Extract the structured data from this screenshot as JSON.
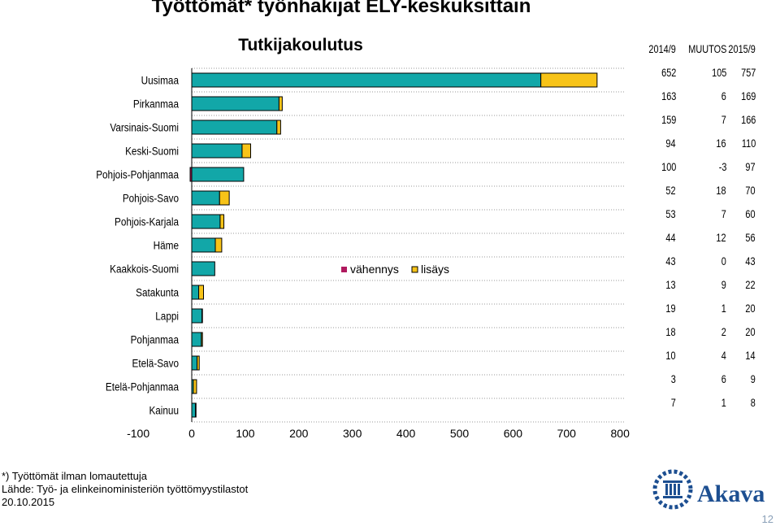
{
  "page": {
    "title": "Työttömät* työnhakijat ELY-keskuksittain",
    "footnote_line1": "*) Työttömät ilman lomautettuja",
    "footnote_line2": "Lähde: Työ- ja elinkeinoministeriön työttömyystilastot",
    "footnote_line3": "20.10.2015",
    "logo_text": "Akava",
    "page_number": "12"
  },
  "table": {
    "headers": [
      "2014/9",
      "MUUTOS",
      "2015/9"
    ],
    "rows": [
      [
        "652",
        "105",
        "757"
      ],
      [
        "163",
        "6",
        "169"
      ],
      [
        "159",
        "7",
        "166"
      ],
      [
        "94",
        "16",
        "110"
      ],
      [
        "100",
        "-3",
        "97"
      ],
      [
        "52",
        "18",
        "70"
      ],
      [
        "53",
        "7",
        "60"
      ],
      [
        "44",
        "12",
        "56"
      ],
      [
        "43",
        "0",
        "43"
      ],
      [
        "13",
        "9",
        "22"
      ],
      [
        "19",
        "1",
        "20"
      ],
      [
        "18",
        "2",
        "20"
      ],
      [
        "10",
        "4",
        "14"
      ],
      [
        "3",
        "6",
        "9"
      ],
      [
        "7",
        "1",
        "8"
      ]
    ]
  },
  "chart_data": {
    "type": "bar",
    "orientation": "horizontal",
    "stacked": true,
    "title": "Tutkijakoulutus",
    "categories": [
      "Uusimaa",
      "Pirkanmaa",
      "Varsinais-Suomi",
      "Keski-Suomi",
      "Pohjois-Pohjanmaa",
      "Pohjois-Savo",
      "Pohjois-Karjala",
      "Häme",
      "Kaakkois-Suomi",
      "Satakunta",
      "Lappi",
      "Pohjanmaa",
      "Etelä-Savo",
      "Etelä-Pohjanmaa",
      "Kainuu"
    ],
    "series": [
      {
        "name": "",
        "values": [
          652,
          163,
          159,
          94,
          97,
          52,
          53,
          44,
          43,
          13,
          19,
          18,
          10,
          3,
          7
        ]
      },
      {
        "name": "vähennys",
        "values": [
          0,
          0,
          0,
          0,
          -3,
          0,
          0,
          0,
          0,
          0,
          0,
          0,
          0,
          0,
          0
        ]
      },
      {
        "name": "lisäys",
        "values": [
          105,
          6,
          7,
          16,
          0,
          18,
          7,
          12,
          0,
          9,
          1,
          2,
          4,
          6,
          1
        ]
      }
    ],
    "xlim": [
      -100,
      800
    ],
    "xticks": [
      "-100",
      "0",
      "100",
      "200",
      "300",
      "400",
      "500",
      "600",
      "700",
      "800"
    ],
    "grid": "horizontal dotted",
    "legend": "center",
    "colors": {
      "base": "#12a7a8",
      "vahennys": "#b0195e",
      "lisays": "#f7c318",
      "grid": "#999999"
    }
  }
}
